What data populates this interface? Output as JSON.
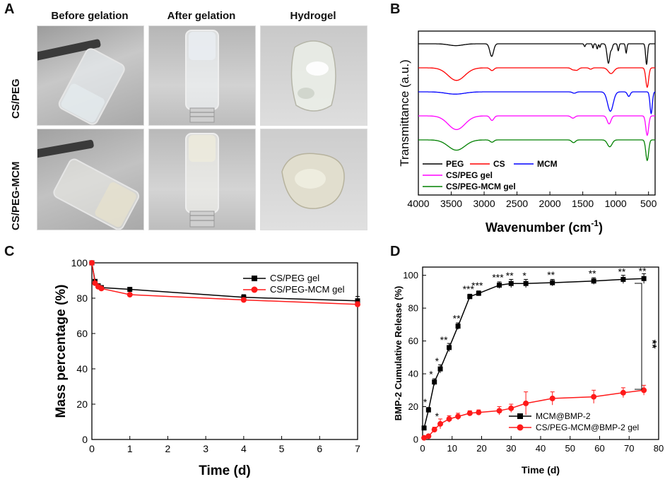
{
  "panels": {
    "a": "A",
    "b": "B",
    "c": "C",
    "d": "D"
  },
  "panelA": {
    "columns": [
      "Before gelation",
      "After gelation",
      "Hydrogel"
    ],
    "rows": [
      "CS/PEG",
      "CS/PEG-MCM"
    ]
  },
  "colors": {
    "black": "#000000",
    "red": "#ff0000",
    "blue": "#0000ff",
    "magenta": "#ff00ff",
    "green": "#008000",
    "pointRed": "#ff1a1a"
  },
  "chart_data": [
    {
      "id": "B",
      "type": "line",
      "title": "",
      "xlabel_main": "Wavenumber (cm",
      "xlabel_sup": "-1",
      "xlabel_close": ")",
      "ylabel": "Transmittance (a.u.)",
      "xlim": [
        4000,
        400
      ],
      "xticks": [
        "4000",
        "3500",
        "3000",
        "2500",
        "2000",
        "1500",
        "1000",
        "500"
      ],
      "xtick_values": [
        4000,
        3500,
        3000,
        2500,
        2000,
        1500,
        1000,
        500
      ],
      "series": [
        {
          "name": "PEG",
          "color": "#000000",
          "offset": 0,
          "baseline": 0.96,
          "features": [
            [
              2885,
              0.55,
              40
            ],
            [
              1470,
              0.12,
              15
            ],
            [
              1345,
              0.18,
              12
            ],
            [
              1280,
              0.22,
              15
            ],
            [
              1240,
              0.15,
              12
            ],
            [
              1110,
              0.85,
              30
            ],
            [
              960,
              0.3,
              15
            ],
            [
              840,
              0.4,
              15
            ],
            [
              3430,
              0.08,
              150
            ],
            [
              1060,
              0.2,
              20
            ],
            [
              530,
              0.9,
              20
            ]
          ]
        },
        {
          "name": "CS",
          "color": "#ff0000",
          "offset": 1,
          "baseline": 0.96,
          "features": [
            [
              3420,
              0.55,
              180
            ],
            [
              2880,
              0.12,
              40
            ],
            [
              1650,
              0.08,
              40
            ],
            [
              1590,
              0.1,
              40
            ],
            [
              1380,
              0.06,
              30
            ],
            [
              1070,
              0.25,
              60
            ],
            [
              520,
              0.85,
              30
            ]
          ]
        },
        {
          "name": "MCM",
          "color": "#0000ff",
          "offset": 2,
          "baseline": 0.96,
          "features": [
            [
              3440,
              0.1,
              200
            ],
            [
              1630,
              0.06,
              40
            ],
            [
              1080,
              0.85,
              60
            ],
            [
              800,
              0.2,
              30
            ],
            [
              460,
              0.95,
              25
            ]
          ]
        },
        {
          "name": "CS/PEG gel",
          "color": "#ff00ff",
          "offset": 3,
          "baseline": 0.96,
          "features": [
            [
              3420,
              0.6,
              180
            ],
            [
              2880,
              0.2,
              40
            ],
            [
              1650,
              0.1,
              40
            ],
            [
              1100,
              0.35,
              40
            ],
            [
              520,
              0.85,
              30
            ]
          ]
        },
        {
          "name": "CS/PEG-MCM gel",
          "color": "#008000",
          "offset": 4,
          "baseline": 0.96,
          "features": [
            [
              3420,
              0.45,
              180
            ],
            [
              2880,
              0.1,
              40
            ],
            [
              1640,
              0.12,
              40
            ],
            [
              1090,
              0.3,
              50
            ],
            [
              520,
              0.9,
              30
            ]
          ]
        }
      ],
      "legend": [
        "PEG",
        "CS",
        "MCM",
        "CS/PEG gel",
        "CS/PEG-MCM gel"
      ],
      "legend_position": "bottom-left"
    },
    {
      "id": "C",
      "type": "line",
      "title": "",
      "xlabel": "Time (d)",
      "ylabel": "Mass percentage (%)",
      "xlim": [
        0,
        7
      ],
      "ylim": [
        0,
        100
      ],
      "xticks": [
        0,
        1,
        2,
        3,
        4,
        5,
        6,
        7
      ],
      "yticks": [
        0,
        20,
        40,
        60,
        80,
        100
      ],
      "series": [
        {
          "name": "CS/PEG gel",
          "color": "#000000",
          "marker": "square",
          "x": [
            0,
            0.083,
            0.167,
            0.25,
            1,
            4,
            7
          ],
          "y": [
            100,
            89.5,
            87,
            86,
            85,
            80.5,
            78.5
          ],
          "err": [
            0,
            1,
            0.8,
            0.6,
            1.2,
            1.5,
            2.5
          ]
        },
        {
          "name": "CS/PEG-MCM gel",
          "color": "#ff1a1a",
          "marker": "circle",
          "x": [
            0,
            0.083,
            0.167,
            0.25,
            1,
            4,
            7
          ],
          "y": [
            100,
            88.5,
            86.5,
            85.5,
            82,
            79,
            76.5
          ],
          "err": [
            0,
            1,
            0.8,
            0.6,
            1,
            1.2,
            1.5
          ]
        }
      ],
      "legend_position": "top-right"
    },
    {
      "id": "D",
      "type": "line",
      "title": "",
      "xlabel": "Time (d)",
      "ylabel": "BMP-2 Cumulative Release (%)",
      "xlim": [
        0,
        80
      ],
      "ylim": [
        0,
        105
      ],
      "xticks": [
        0,
        10,
        20,
        30,
        40,
        50,
        60,
        70,
        80
      ],
      "yticks": [
        0,
        20,
        40,
        60,
        80,
        100
      ],
      "series": [
        {
          "name": "MCM@BMP-2",
          "color": "#000000",
          "marker": "square",
          "x": [
            0.5,
            2,
            4,
            6,
            9,
            12,
            16,
            19,
            26,
            30,
            35,
            44,
            58,
            68,
            75
          ],
          "y": [
            7,
            18,
            35,
            43,
            56,
            69,
            87,
            89,
            94,
            95,
            95,
            95.5,
            96.5,
            97.5,
            98
          ],
          "err": [
            1,
            1.5,
            2,
            2.5,
            2.5,
            2,
            1.5,
            1.5,
            2,
            2.5,
            2.5,
            2,
            2,
            2.5,
            3
          ]
        },
        {
          "name": "CS/PEG-MCM@BMP-2 gel",
          "color": "#ff1a1a",
          "marker": "circle",
          "x": [
            0.5,
            2,
            4,
            6,
            9,
            12,
            16,
            19,
            26,
            30,
            35,
            44,
            58,
            68,
            75
          ],
          "y": [
            1,
            2,
            6,
            9.5,
            12.5,
            14,
            16,
            16.5,
            17.5,
            19,
            22,
            25,
            26,
            28.5,
            30
          ],
          "err": [
            0.5,
            1,
            1.5,
            3,
            2,
            2,
            1.5,
            1.5,
            2.5,
            2.5,
            7,
            4,
            4,
            3,
            3
          ]
        }
      ],
      "annotations": [
        {
          "x": 2,
          "y": 18,
          "text": "*"
        },
        {
          "x": 4,
          "y": 35,
          "text": "*"
        },
        {
          "x": 6,
          "y": 43,
          "text": "*"
        },
        {
          "x": 9,
          "y": 56,
          "text": "**"
        },
        {
          "x": 12,
          "y": 69,
          "text": "**"
        },
        {
          "x": 16,
          "y": 87,
          "text": "***"
        },
        {
          "x": 19,
          "y": 89,
          "text": "***"
        },
        {
          "x": 26,
          "y": 94,
          "text": "***"
        },
        {
          "x": 30,
          "y": 95,
          "text": "**"
        },
        {
          "x": 35,
          "y": 95,
          "text": "*"
        },
        {
          "x": 44,
          "y": 95.5,
          "text": "**"
        },
        {
          "x": 58,
          "y": 96.5,
          "text": "**"
        },
        {
          "x": 68,
          "y": 97.5,
          "text": "**"
        },
        {
          "x": 75,
          "y": 98,
          "text": "**"
        },
        {
          "x": 6,
          "y": 9.5,
          "text": "*"
        }
      ],
      "bracket_label": "**",
      "legend_position": "bottom-right"
    }
  ]
}
